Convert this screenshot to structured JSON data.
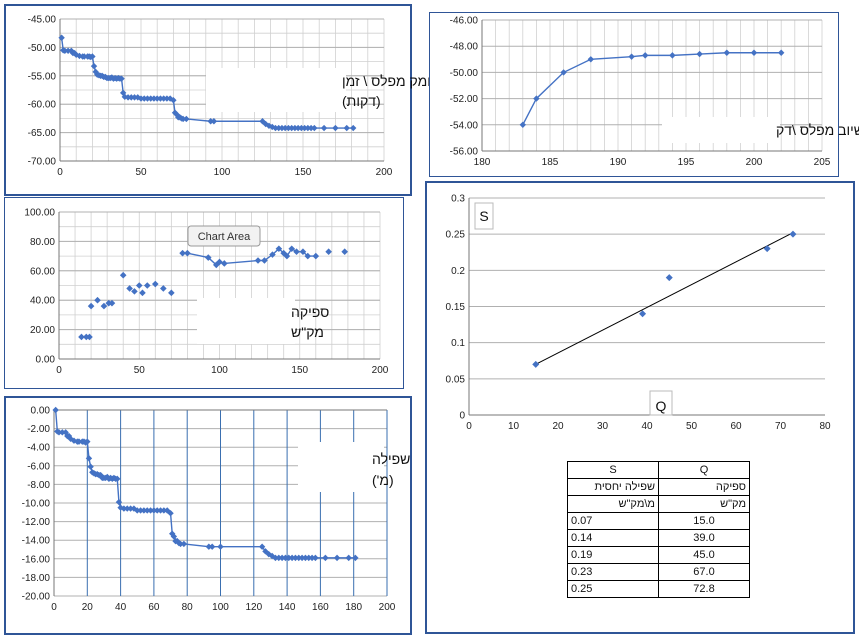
{
  "colors": {
    "series": "#4472c4",
    "grid": "#b0b0b0",
    "frame": "#2f5597",
    "trend": "#000000"
  },
  "chart_data": [
    {
      "type": "line",
      "title": "עומק מפלס \\ זמן",
      "subtitle": "(דקות)",
      "xlim": [
        0,
        200
      ],
      "ylim": [
        -70,
        -45
      ],
      "xticks": [
        0,
        50,
        100,
        150,
        200
      ],
      "yticks": [
        -45,
        -50,
        -55,
        -60,
        -65,
        -70
      ],
      "ytick_labels": [
        "-45.00",
        "-50.00",
        "-55.00",
        "-60.00",
        "-65.00",
        "-70.00"
      ],
      "grid": true,
      "series": [
        {
          "x": [
            1,
            2,
            3,
            5,
            7,
            8,
            9,
            10,
            12,
            14,
            15,
            17,
            18,
            19,
            20,
            21,
            22,
            23,
            24,
            25,
            26,
            27,
            28,
            29,
            30,
            31,
            32,
            33,
            34,
            35,
            36,
            37,
            38,
            39,
            40,
            42,
            44,
            46,
            48,
            50,
            52,
            54,
            56,
            58,
            60,
            62,
            64,
            66,
            68,
            70,
            71,
            72,
            73,
            74,
            75,
            76,
            78,
            93,
            95,
            125,
            127,
            129,
            131,
            133,
            135,
            137,
            139,
            141,
            143,
            145,
            147,
            149,
            151,
            153,
            155,
            157,
            163,
            170,
            177,
            181
          ],
          "y": [
            -48.3,
            -50.5,
            -50.6,
            -50.6,
            -50.6,
            -51,
            -51,
            -51.3,
            -51.5,
            -51.6,
            -51.6,
            -51.6,
            -51.6,
            -51.7,
            -51.6,
            -53.3,
            -54.3,
            -54.8,
            -54.9,
            -55,
            -55,
            -55.2,
            -55.2,
            -55.4,
            -55.4,
            -55.4,
            -55.3,
            -55.5,
            -55.4,
            -55.5,
            -55.4,
            -55.5,
            -55.5,
            -58,
            -58.7,
            -58.8,
            -58.8,
            -58.8,
            -58.8,
            -59,
            -59,
            -59,
            -59,
            -59,
            -59,
            -59,
            -59,
            -59,
            -59,
            -59.3,
            -61.5,
            -61.8,
            -62.3,
            -62.3,
            -62.5,
            -62.6,
            -62.6,
            -63,
            -63,
            -63,
            -63.5,
            -63.8,
            -64,
            -64.2,
            -64.2,
            -64.2,
            -64.2,
            -64.2,
            -64.2,
            -64.2,
            -64.2,
            -64.2,
            -64.2,
            -64.2,
            -64.2,
            -64.2,
            -64.2,
            -64.2,
            -64.2,
            -64.2
          ]
        }
      ]
    },
    {
      "type": "line",
      "title": "שיוב מפלס \\דק",
      "xlim": [
        180,
        205
      ],
      "ylim": [
        -56,
        -46
      ],
      "xticks": [
        180,
        185,
        190,
        195,
        200,
        205
      ],
      "yticks": [
        -46,
        -48,
        -50,
        -52,
        -54,
        -56
      ],
      "ytick_labels": [
        "-46.00",
        "-48.00",
        "-50.00",
        "-52.00",
        "-54.00",
        "-56.00"
      ],
      "grid": true,
      "series": [
        {
          "x": [
            183,
            184,
            186,
            188,
            191,
            192,
            194,
            196,
            198,
            200,
            202
          ],
          "y": [
            -54.0,
            -52.0,
            -50.0,
            -49.0,
            -48.8,
            -48.7,
            -48.7,
            -48.6,
            -48.5,
            -48.5,
            -48.5
          ]
        }
      ]
    },
    {
      "type": "scatter",
      "title": "ספיקה",
      "subtitle": "מק\"ש",
      "annotation": "Chart Area",
      "xlim": [
        0,
        200
      ],
      "ylim": [
        0,
        100
      ],
      "xticks": [
        0,
        50,
        100,
        150,
        200
      ],
      "yticks": [
        0,
        20,
        40,
        60,
        80,
        100
      ],
      "ytick_labels": [
        "0.00",
        "20.00",
        "40.00",
        "60.00",
        "80.00",
        "100.00"
      ],
      "grid": true,
      "series": [
        {
          "x": [
            14,
            17,
            19,
            20,
            24,
            28,
            31,
            33,
            40,
            44,
            47,
            50,
            52,
            55,
            60,
            65,
            70,
            77,
            80,
            93,
            98,
            100,
            103,
            124,
            128,
            133,
            137,
            140,
            142,
            145,
            148,
            152,
            155,
            160,
            168,
            178
          ],
          "y": [
            15,
            15,
            15,
            36,
            40,
            36,
            38,
            38,
            57,
            48,
            46,
            50,
            45,
            50,
            51,
            48,
            45,
            72,
            72,
            69,
            64,
            66,
            65,
            67,
            67,
            71,
            75,
            72,
            70,
            75,
            73,
            73,
            70,
            70,
            73,
            73
          ],
          "connected_x": [
            77,
            80,
            93,
            98,
            100,
            103,
            124,
            128,
            133,
            137,
            140,
            142,
            145,
            148,
            152,
            155,
            160
          ],
          "connected_y": [
            72,
            72,
            69,
            64,
            66,
            65,
            67,
            67,
            71,
            75,
            72,
            70,
            75,
            73,
            73,
            70,
            70
          ]
        }
      ]
    },
    {
      "type": "line",
      "title": "שפילה",
      "subtitle": "(מ')",
      "xlim": [
        0,
        200
      ],
      "ylim": [
        -20,
        0
      ],
      "xticks": [
        0,
        20,
        40,
        60,
        80,
        100,
        120,
        140,
        160,
        180,
        200
      ],
      "yticks": [
        0,
        -2,
        -4,
        -6,
        -8,
        -10,
        -12,
        -14,
        -16,
        -18,
        -20
      ],
      "ytick_labels": [
        "0.00",
        "-2.00",
        "-4.00",
        "-6.00",
        "-8.00",
        "-10.00",
        "-12.00",
        "-14.00",
        "-16.00",
        "-18.00",
        "-20.00"
      ],
      "grid": true,
      "series": [
        {
          "x": [
            1,
            2,
            3,
            5,
            7,
            8,
            9,
            10,
            12,
            14,
            15,
            17,
            18,
            19,
            20,
            21,
            22,
            23,
            24,
            25,
            26,
            27,
            28,
            29,
            30,
            31,
            32,
            33,
            34,
            35,
            36,
            37,
            38,
            39,
            40,
            42,
            44,
            46,
            48,
            50,
            52,
            54,
            56,
            58,
            60,
            62,
            64,
            66,
            68,
            70,
            71,
            72,
            73,
            74,
            75,
            76,
            78,
            93,
            95,
            100,
            125,
            127,
            129,
            131,
            133,
            135,
            137,
            139,
            141,
            143,
            145,
            147,
            149,
            151,
            153,
            155,
            157,
            163,
            170,
            177,
            181
          ],
          "y": [
            0,
            -2.3,
            -2.4,
            -2.4,
            -2.4,
            -2.8,
            -2.8,
            -3.1,
            -3.3,
            -3.4,
            -3.4,
            -3.4,
            -3.4,
            -3.5,
            -3.4,
            -5.2,
            -6.1,
            -6.7,
            -6.8,
            -6.9,
            -6.9,
            -7,
            -7,
            -7.3,
            -7.3,
            -7.3,
            -7.2,
            -7.4,
            -7.3,
            -7.4,
            -7.3,
            -7.4,
            -7.4,
            -9.9,
            -10.5,
            -10.6,
            -10.6,
            -10.6,
            -10.6,
            -10.8,
            -10.8,
            -10.8,
            -10.8,
            -10.8,
            -10.8,
            -10.8,
            -10.8,
            -10.8,
            -10.8,
            -11.1,
            -13.3,
            -13.6,
            -14.1,
            -14.1,
            -14.3,
            -14.4,
            -14.4,
            -14.7,
            -14.7,
            -14.7,
            -14.7,
            -15.2,
            -15.5,
            -15.7,
            -15.9,
            -15.9,
            -15.9,
            -15.9,
            -15.9,
            -15.9,
            -15.9,
            -15.9,
            -15.9,
            -15.9,
            -15.9,
            -15.9,
            -15.9,
            -15.9,
            -15.9,
            -15.9,
            -15.9
          ]
        }
      ]
    },
    {
      "type": "scatter",
      "ylabel": "S",
      "xlabel": "Q",
      "xlim": [
        0,
        80
      ],
      "ylim": [
        0,
        0.3
      ],
      "xticks": [
        0,
        10,
        20,
        30,
        40,
        50,
        60,
        70,
        80
      ],
      "yticks": [
        0,
        0.05,
        0.1,
        0.15,
        0.2,
        0.25,
        0.3
      ],
      "ytick_labels": [
        "0",
        "0.05",
        "0.1",
        "0.15",
        "0.2",
        "0.25",
        "0.3"
      ],
      "grid": true,
      "series": [
        {
          "x": [
            15,
            39,
            45,
            67,
            72.8
          ],
          "y": [
            0.07,
            0.14,
            0.19,
            0.23,
            0.25
          ]
        }
      ],
      "trendline": {
        "x": [
          15,
          72.8
        ],
        "y": [
          0.07,
          0.252
        ]
      }
    },
    {
      "type": "table",
      "columns": [
        {
          "header": "Q",
          "subheader": "ספיקה",
          "unit": "מק\"ש"
        },
        {
          "header": "S",
          "subheader": "שפילה יחסית",
          "unit": "מ\\מק\"ש"
        }
      ],
      "rows": [
        {
          "Q": "15.0",
          "S": "0.07"
        },
        {
          "Q": "39.0",
          "S": "0.14"
        },
        {
          "Q": "45.0",
          "S": "0.19"
        },
        {
          "Q": "67.0",
          "S": "0.23"
        },
        {
          "Q": "72.8",
          "S": "0.25"
        }
      ]
    }
  ]
}
